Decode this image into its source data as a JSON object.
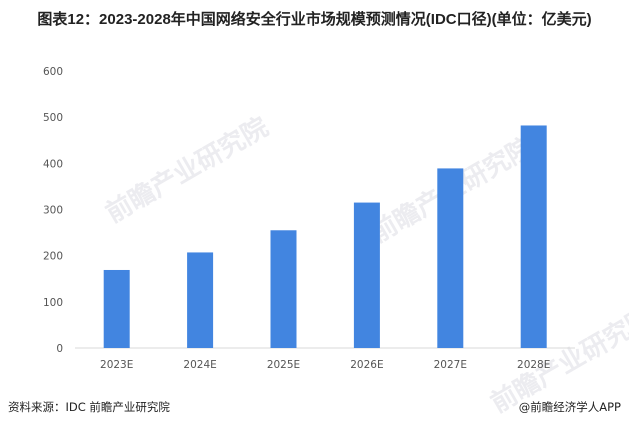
{
  "chart_data": {
    "type": "bar",
    "title": "图表12：2023-2028年中国网络安全行业市场规模预测情况(IDC口径)(单位：亿美元)",
    "categories": [
      "2023E",
      "2024E",
      "2025E",
      "2026E",
      "2027E",
      "2028E"
    ],
    "values": [
      169,
      207,
      255,
      315,
      389,
      482
    ],
    "ylim": [
      0,
      600
    ],
    "yticks": [
      0,
      100,
      200,
      300,
      400,
      500,
      600
    ],
    "xlabel": "",
    "ylabel": "",
    "grid": false,
    "legend": "none",
    "bar_color": "#4285e0"
  },
  "footer": {
    "source": "资料来源：IDC 前瞻产业研究院",
    "brand": "@前瞻经济学人APP"
  },
  "watermark": "前瞻产业研究院"
}
